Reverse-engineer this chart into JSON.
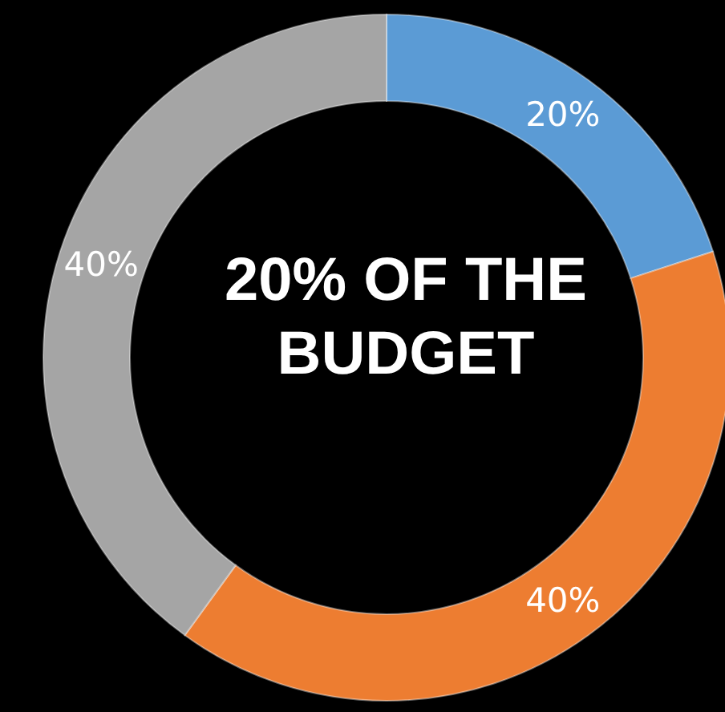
{
  "chart_data": {
    "type": "donut",
    "title": "20% OF THE BUDGET",
    "categories": [
      null,
      null,
      null
    ],
    "values": [
      20,
      40,
      40
    ],
    "value_labels": [
      "20%",
      "40%",
      "40%"
    ],
    "colors": [
      "#5b9bd5",
      "#ed7d31",
      "#a5a5a5"
    ],
    "legend": false
  }
}
